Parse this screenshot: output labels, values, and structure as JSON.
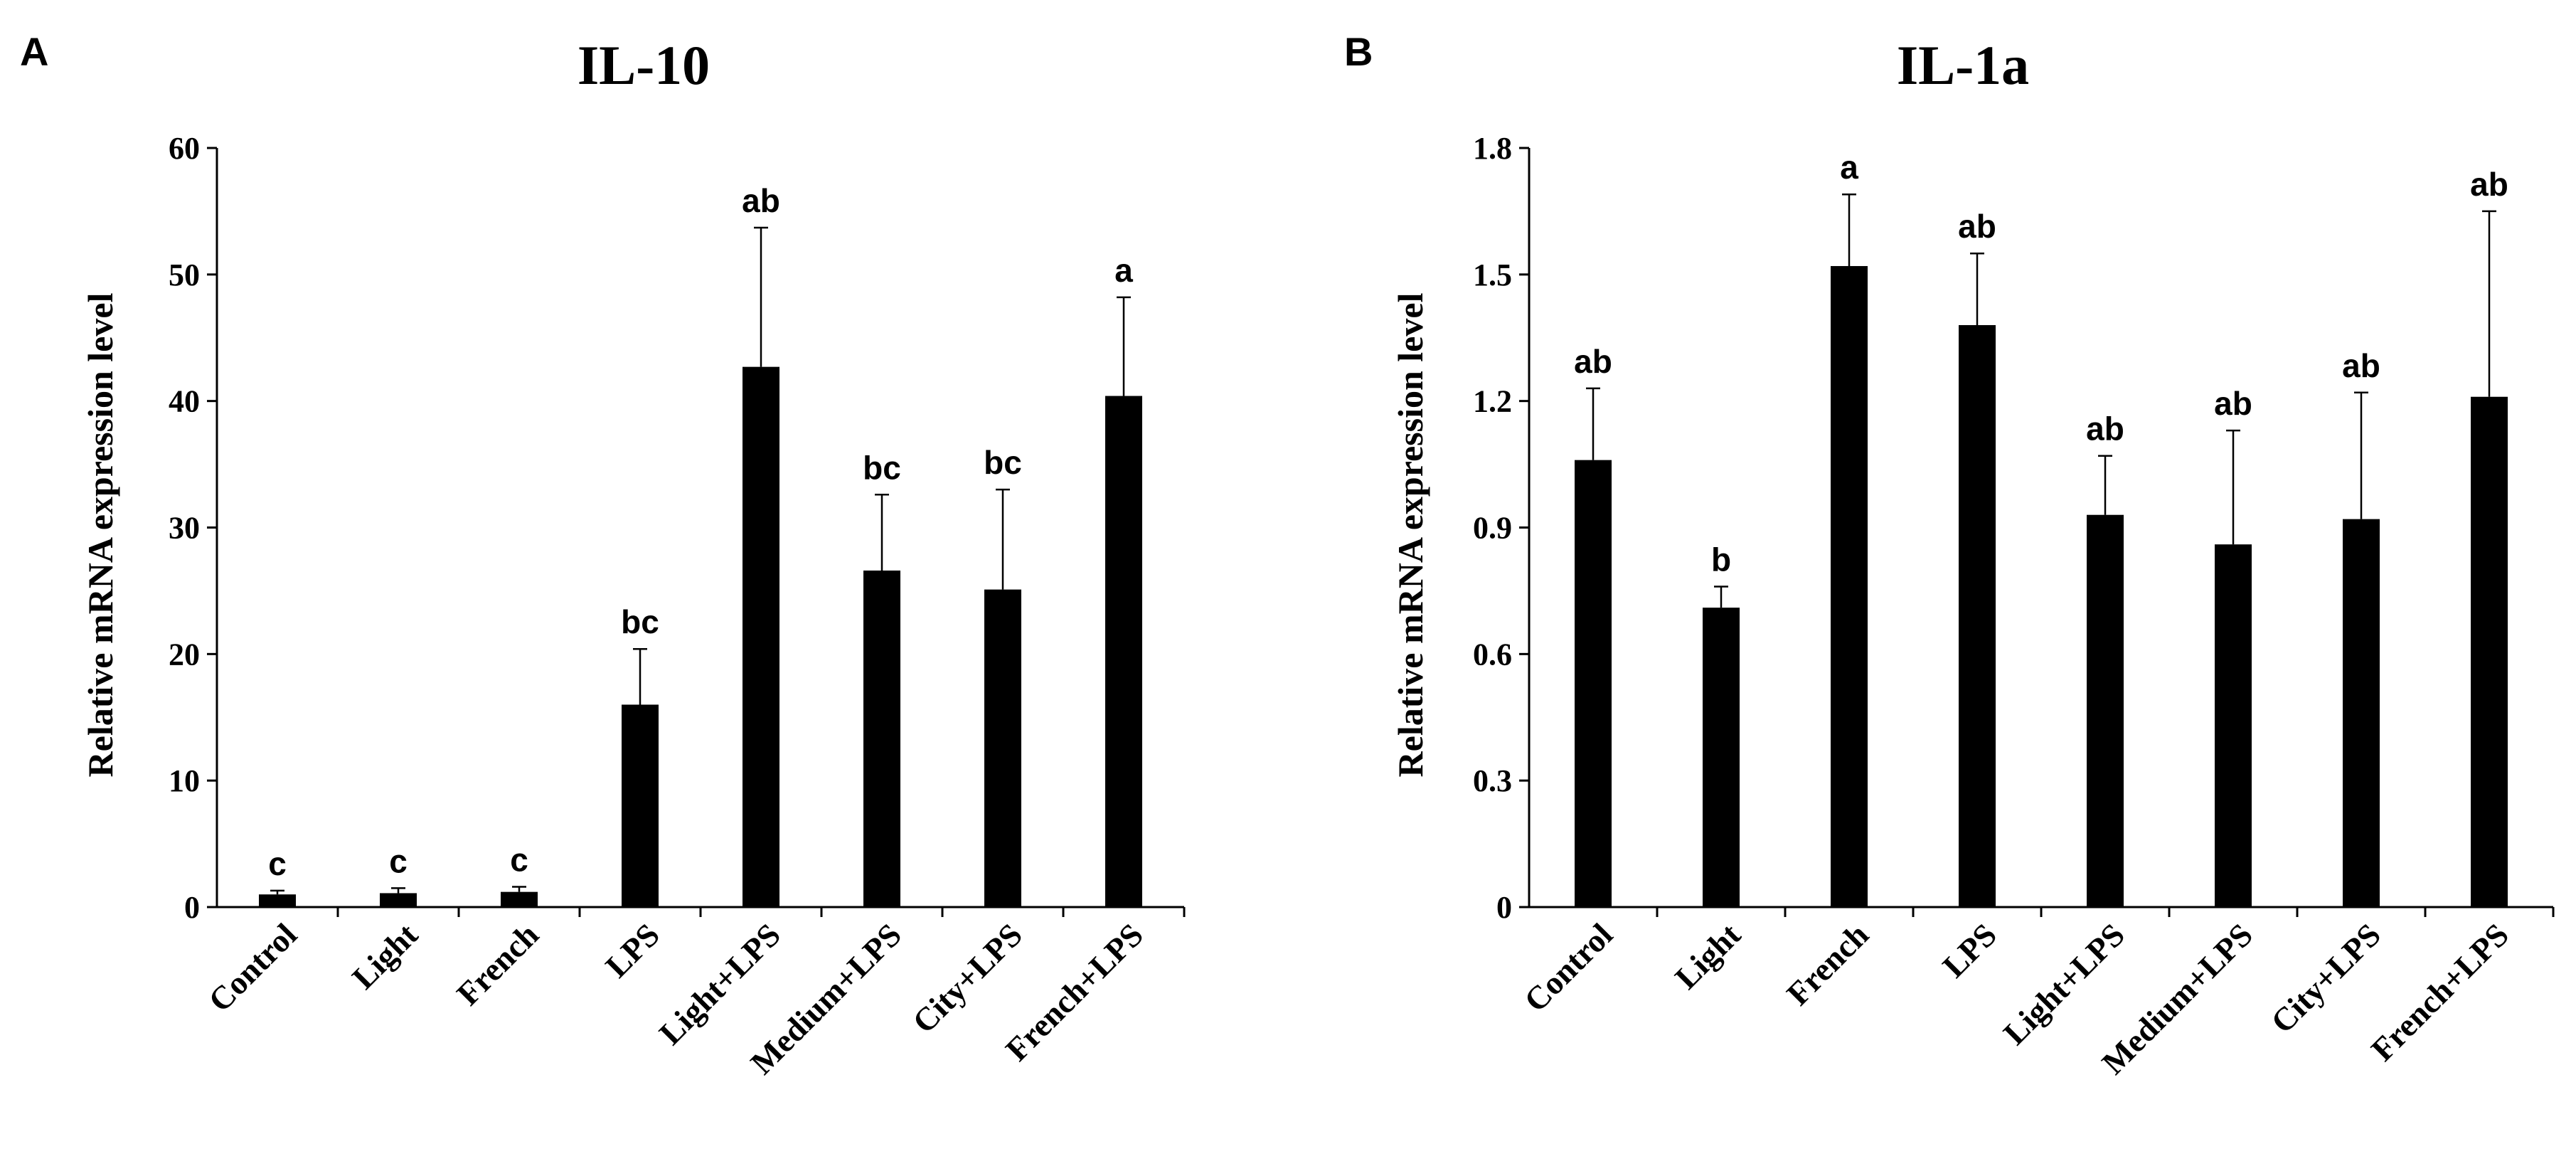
{
  "chart_data": [
    {
      "type": "bar",
      "panel": "A",
      "title": "IL-10",
      "xlabel": "",
      "ylabel": "Relative mRNA expression level",
      "ylim": [
        0,
        60
      ],
      "yticks": [
        "0",
        "10",
        "20",
        "30",
        "40",
        "50",
        "60"
      ],
      "ytick_values": [
        0,
        10,
        20,
        30,
        40,
        50,
        60
      ],
      "categories": [
        "Control",
        "Light",
        "French",
        "LPS",
        "Light+LPS",
        "Medium+LPS",
        "City+LPS",
        "French+LPS"
      ],
      "values": [
        1.0,
        1.1,
        1.2,
        16.0,
        42.7,
        26.6,
        25.1,
        40.4
      ],
      "errors": [
        0.3,
        0.4,
        0.4,
        4.4,
        11.0,
        6.0,
        7.9,
        7.8
      ],
      "significance": [
        "c",
        "c",
        "c",
        "bc",
        "ab",
        "bc",
        "bc",
        "a"
      ]
    },
    {
      "type": "bar",
      "panel": "B",
      "title": "IL-1a",
      "xlabel": "",
      "ylabel": "Relative mRNA expression level",
      "ylim": [
        0,
        1.8
      ],
      "yticks": [
        "0",
        "0.3",
        "0.6",
        "0.9",
        "1.2",
        "1.5",
        "1.8"
      ],
      "ytick_values": [
        0,
        0.3,
        0.6,
        0.9,
        1.2,
        1.5,
        1.8
      ],
      "categories": [
        "Control",
        "Light",
        "French",
        "LPS",
        "Light+LPS",
        "Medium+LPS",
        "City+LPS",
        "French+LPS"
      ],
      "values": [
        1.06,
        0.71,
        1.52,
        1.38,
        0.93,
        0.86,
        0.92,
        1.21
      ],
      "errors": [
        0.17,
        0.05,
        0.17,
        0.17,
        0.14,
        0.27,
        0.3,
        0.44
      ],
      "significance": [
        "ab",
        "b",
        "a",
        "ab",
        "ab",
        "ab",
        "ab",
        "ab"
      ]
    }
  ]
}
